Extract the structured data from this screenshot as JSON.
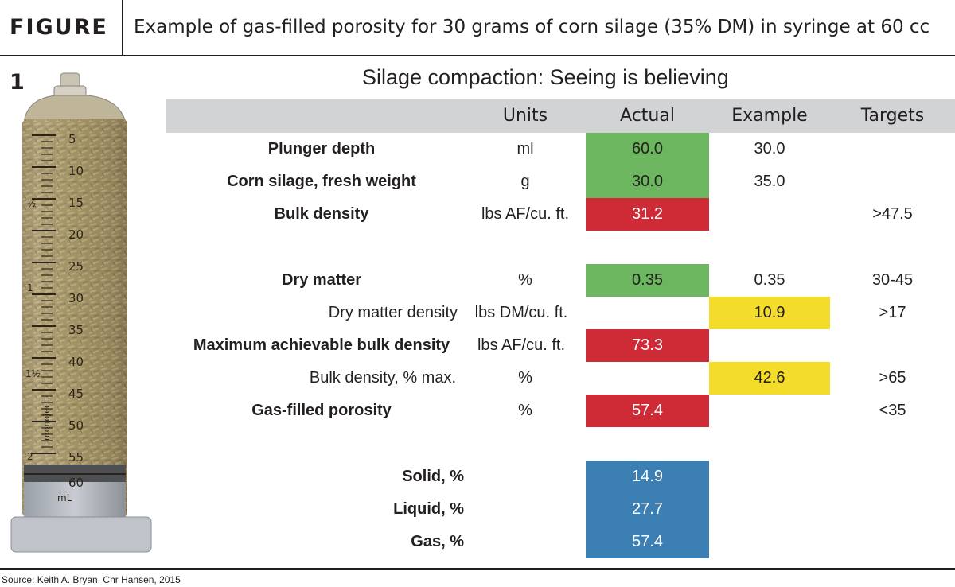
{
  "figure": {
    "label": "FIGURE 1",
    "caption": "Example of gas-filled porosity for 30 grams of corn silage (35% DM) in syringe at 60 cc"
  },
  "table": {
    "title": "Silage compaction: Seeing is believing",
    "headers": {
      "units": "Units",
      "actual": "Actual",
      "example": "Example",
      "targets": "Targets"
    },
    "rows": [
      {
        "label": "Plunger depth",
        "units": "ml",
        "actual": "60.0",
        "example": "30.0",
        "target": ""
      },
      {
        "label": "Corn silage, fresh weight",
        "units": "g",
        "actual": "30.0",
        "example": "35.0",
        "target": ""
      },
      {
        "label": "Bulk density",
        "units": "lbs AF/cu. ft.",
        "actual": "31.2",
        "example": "",
        "target": ">47.5"
      },
      {
        "label": "Dry matter",
        "units": "%",
        "actual": "0.35",
        "example": "0.35",
        "target": "30-45"
      },
      {
        "label": "Dry matter density",
        "units": "lbs DM/cu. ft.",
        "actual": "",
        "example": "10.9",
        "target": ">17"
      },
      {
        "label": "Maximum achievable bulk density",
        "units": "lbs AF/cu. ft.",
        "actual": "73.3",
        "example": "",
        "target": ""
      },
      {
        "label": "Bulk density, % max.",
        "units": "%",
        "actual": "",
        "example": "42.6",
        "target": ">65"
      },
      {
        "label": "Gas-filled porosity",
        "units": "%",
        "actual": "57.4",
        "example": "",
        "target": "<35"
      },
      {
        "label": "Solid, %",
        "units": "",
        "actual": "14.9",
        "example": "",
        "target": ""
      },
      {
        "label": "Liquid, %",
        "units": "",
        "actual": "27.7",
        "example": "",
        "target": ""
      },
      {
        "label": "Gas, %",
        "units": "",
        "actual": "57.4",
        "example": "",
        "target": ""
      }
    ]
  },
  "syringe": {
    "scale_numbers": [
      "5",
      "10",
      "15",
      "20",
      "25",
      "30",
      "35",
      "40",
      "45",
      "50",
      "55",
      "60"
    ],
    "unit_label": "mL",
    "brand_text": "monoject",
    "fraction_marks": [
      "½",
      "1",
      "1½",
      "2"
    ]
  },
  "colors": {
    "green": "#6cb65f",
    "red": "#cf2b36",
    "yellow": "#f3dc2a",
    "blue": "#3b7fb3",
    "header_gray": "#d1d3d4"
  },
  "source": "Source: Keith A. Bryan, Chr Hansen, 2015"
}
